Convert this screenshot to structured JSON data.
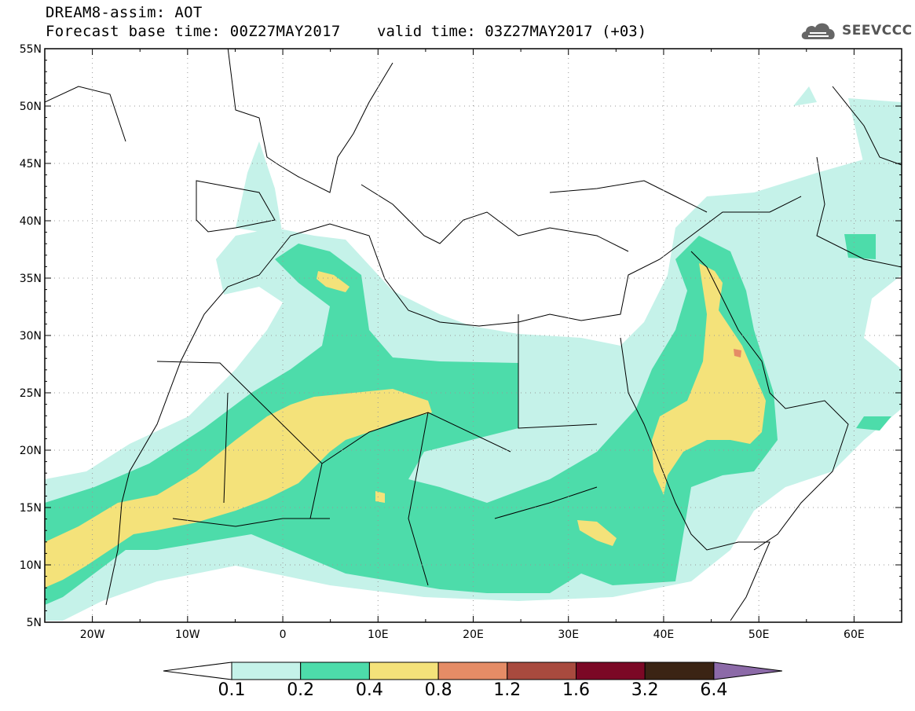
{
  "header": {
    "line1": "DREAM8-assim: AOT",
    "line2": "Forecast base time: 00Z27MAY2017",
    "valid": "valid time: 03Z27MAY2017 (+03)"
  },
  "logo": {
    "text": "SEEVCCC",
    "icon": "cloud-icon"
  },
  "map": {
    "lat_labels": [
      "55N",
      "50N",
      "45N",
      "40N",
      "35N",
      "30N",
      "25N",
      "20N",
      "15N",
      "10N",
      "5N"
    ],
    "lon_labels": [
      "20W",
      "10W",
      "0",
      "10E",
      "20E",
      "30E",
      "40E",
      "50E",
      "60E"
    ],
    "lat_range": [
      5,
      55
    ],
    "lon_range": [
      -25,
      65
    ],
    "field": "AOT",
    "levels_colors": {
      "0.1-0.2": "#c5f2e9",
      "0.2-0.4": "#4ddcaa",
      "0.4-0.8": "#f4e27a",
      "0.8-1.2": "#e58c66",
      "1.2-1.6": "#a84a3e"
    }
  },
  "colorbar": {
    "labels": [
      "0.1",
      "0.2",
      "0.4",
      "0.8",
      "1.2",
      "1.6",
      "3.2",
      "6.4"
    ],
    "colors": [
      "#ffffff",
      "#c5f2e9",
      "#4ddcaa",
      "#f4e27a",
      "#e58c66",
      "#a84a3e",
      "#7b0825",
      "#3b2414",
      "#8c6aa8"
    ]
  }
}
